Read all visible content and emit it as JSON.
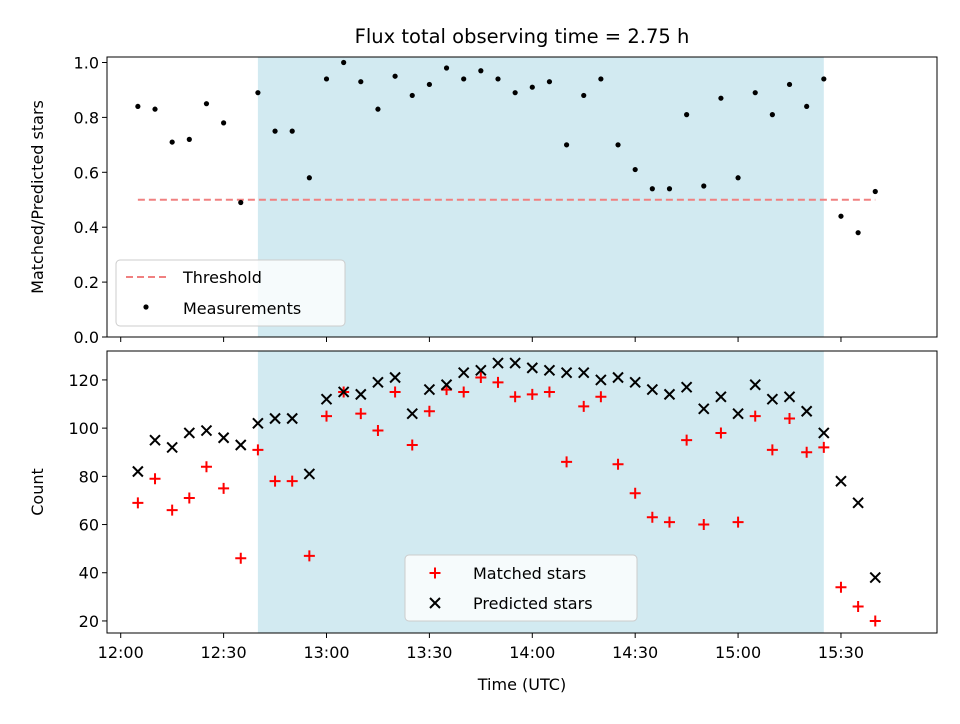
{
  "chart_data": [
    {
      "type": "scatter",
      "title": "Flux total observing time = 2.75 h",
      "xlabel": "",
      "ylabel": "Matched/Predicted stars",
      "ylim": [
        0,
        1.02
      ],
      "yticks": [
        0.0,
        0.2,
        0.4,
        0.6,
        0.8,
        1.0
      ],
      "ytick_labels": [
        "0.0",
        "0.2",
        "0.4",
        "0.6",
        "0.8",
        "1.0"
      ],
      "xlim": [
        "11:56",
        "15:58"
      ],
      "xticks": [
        "12:00",
        "12:30",
        "13:00",
        "13:30",
        "14:00",
        "14:30",
        "15:00",
        "15:30"
      ],
      "grid": false,
      "legend_position": "lower-left",
      "shaded_region": {
        "x_start": "12:40",
        "x_end": "15:25",
        "color": "#add8e6"
      },
      "threshold": {
        "name": "Threshold",
        "y": 0.5,
        "x_start": "12:05",
        "x_end": "15:40",
        "color": "#f08080"
      },
      "series": [
        {
          "name": "Measurements",
          "color": "#000000",
          "marker": "dot",
          "x": [
            "12:05",
            "12:10",
            "12:15",
            "12:20",
            "12:25",
            "12:30",
            "12:35",
            "12:40",
            "12:45",
            "12:50",
            "12:55",
            "13:00",
            "13:05",
            "13:10",
            "13:15",
            "13:20",
            "13:25",
            "13:30",
            "13:35",
            "13:40",
            "13:45",
            "13:50",
            "13:55",
            "14:00",
            "14:05",
            "14:10",
            "14:15",
            "14:20",
            "14:25",
            "14:30",
            "14:35",
            "14:40",
            "14:45",
            "14:50",
            "14:55",
            "15:00",
            "15:05",
            "15:10",
            "15:15",
            "15:20",
            "15:25",
            "15:30",
            "15:35",
            "15:40"
          ],
          "y": [
            0.84,
            0.83,
            0.71,
            0.72,
            0.85,
            0.78,
            0.49,
            0.89,
            0.75,
            0.75,
            0.58,
            0.94,
            1.0,
            0.93,
            0.83,
            0.95,
            0.88,
            0.92,
            0.98,
            0.94,
            0.97,
            0.94,
            0.89,
            0.91,
            0.93,
            0.7,
            0.88,
            0.94,
            0.7,
            0.61,
            0.54,
            0.54,
            0.81,
            0.55,
            0.87,
            0.58,
            0.89,
            0.81,
            0.92,
            0.84,
            0.94,
            0.44,
            0.38,
            0.53
          ]
        }
      ]
    },
    {
      "type": "scatter",
      "title": "",
      "xlabel": "Time (UTC)",
      "ylabel": "Count",
      "ylim": [
        15,
        132
      ],
      "yticks": [
        20,
        40,
        60,
        80,
        100,
        120
      ],
      "ytick_labels": [
        "20",
        "40",
        "60",
        "80",
        "100",
        "120"
      ],
      "xlim": [
        "11:56",
        "15:58"
      ],
      "xticks": [
        "12:00",
        "12:30",
        "13:00",
        "13:30",
        "14:00",
        "14:30",
        "15:00",
        "15:30"
      ],
      "xtick_labels": [
        "12:00",
        "12:30",
        "13:00",
        "13:30",
        "14:00",
        "14:30",
        "15:00",
        "15:30"
      ],
      "grid": false,
      "legend_position": "lower-center",
      "shaded_region": {
        "x_start": "12:40",
        "x_end": "15:25",
        "color": "#add8e6"
      },
      "series": [
        {
          "name": "Matched stars",
          "color": "#ff0000",
          "marker": "plus",
          "x": [
            "12:05",
            "12:10",
            "12:15",
            "12:20",
            "12:25",
            "12:30",
            "12:35",
            "12:40",
            "12:45",
            "12:50",
            "12:55",
            "13:00",
            "13:05",
            "13:10",
            "13:15",
            "13:20",
            "13:25",
            "13:30",
            "13:35",
            "13:40",
            "13:45",
            "13:50",
            "13:55",
            "14:00",
            "14:05",
            "14:10",
            "14:15",
            "14:20",
            "14:25",
            "14:30",
            "14:35",
            "14:40",
            "14:45",
            "14:50",
            "14:55",
            "15:00",
            "15:05",
            "15:10",
            "15:15",
            "15:20",
            "15:25",
            "15:30",
            "15:35",
            "15:40"
          ],
          "y": [
            69,
            79,
            66,
            71,
            84,
            75,
            46,
            91,
            78,
            78,
            47,
            105,
            115,
            106,
            99,
            115,
            93,
            107,
            116,
            115,
            121,
            119,
            113,
            114,
            115,
            86,
            109,
            113,
            85,
            73,
            63,
            61,
            95,
            60,
            98,
            61,
            105,
            91,
            104,
            90,
            92,
            34,
            26,
            20
          ]
        },
        {
          "name": "Predicted stars",
          "color": "#000000",
          "marker": "x",
          "x": [
            "12:05",
            "12:10",
            "12:15",
            "12:20",
            "12:25",
            "12:30",
            "12:35",
            "12:40",
            "12:45",
            "12:50",
            "12:55",
            "13:00",
            "13:05",
            "13:10",
            "13:15",
            "13:20",
            "13:25",
            "13:30",
            "13:35",
            "13:40",
            "13:45",
            "13:50",
            "13:55",
            "14:00",
            "14:05",
            "14:10",
            "14:15",
            "14:20",
            "14:25",
            "14:30",
            "14:35",
            "14:40",
            "14:45",
            "14:50",
            "14:55",
            "15:00",
            "15:05",
            "15:10",
            "15:15",
            "15:20",
            "15:25",
            "15:30",
            "15:35",
            "15:40"
          ],
          "y": [
            82,
            95,
            92,
            98,
            99,
            96,
            93,
            102,
            104,
            104,
            81,
            112,
            115,
            114,
            119,
            121,
            106,
            116,
            118,
            123,
            124,
            127,
            127,
            125,
            124,
            123,
            123,
            120,
            121,
            119,
            116,
            114,
            117,
            108,
            113,
            106,
            118,
            112,
            113,
            107,
            98,
            78,
            69,
            38
          ]
        }
      ]
    }
  ]
}
